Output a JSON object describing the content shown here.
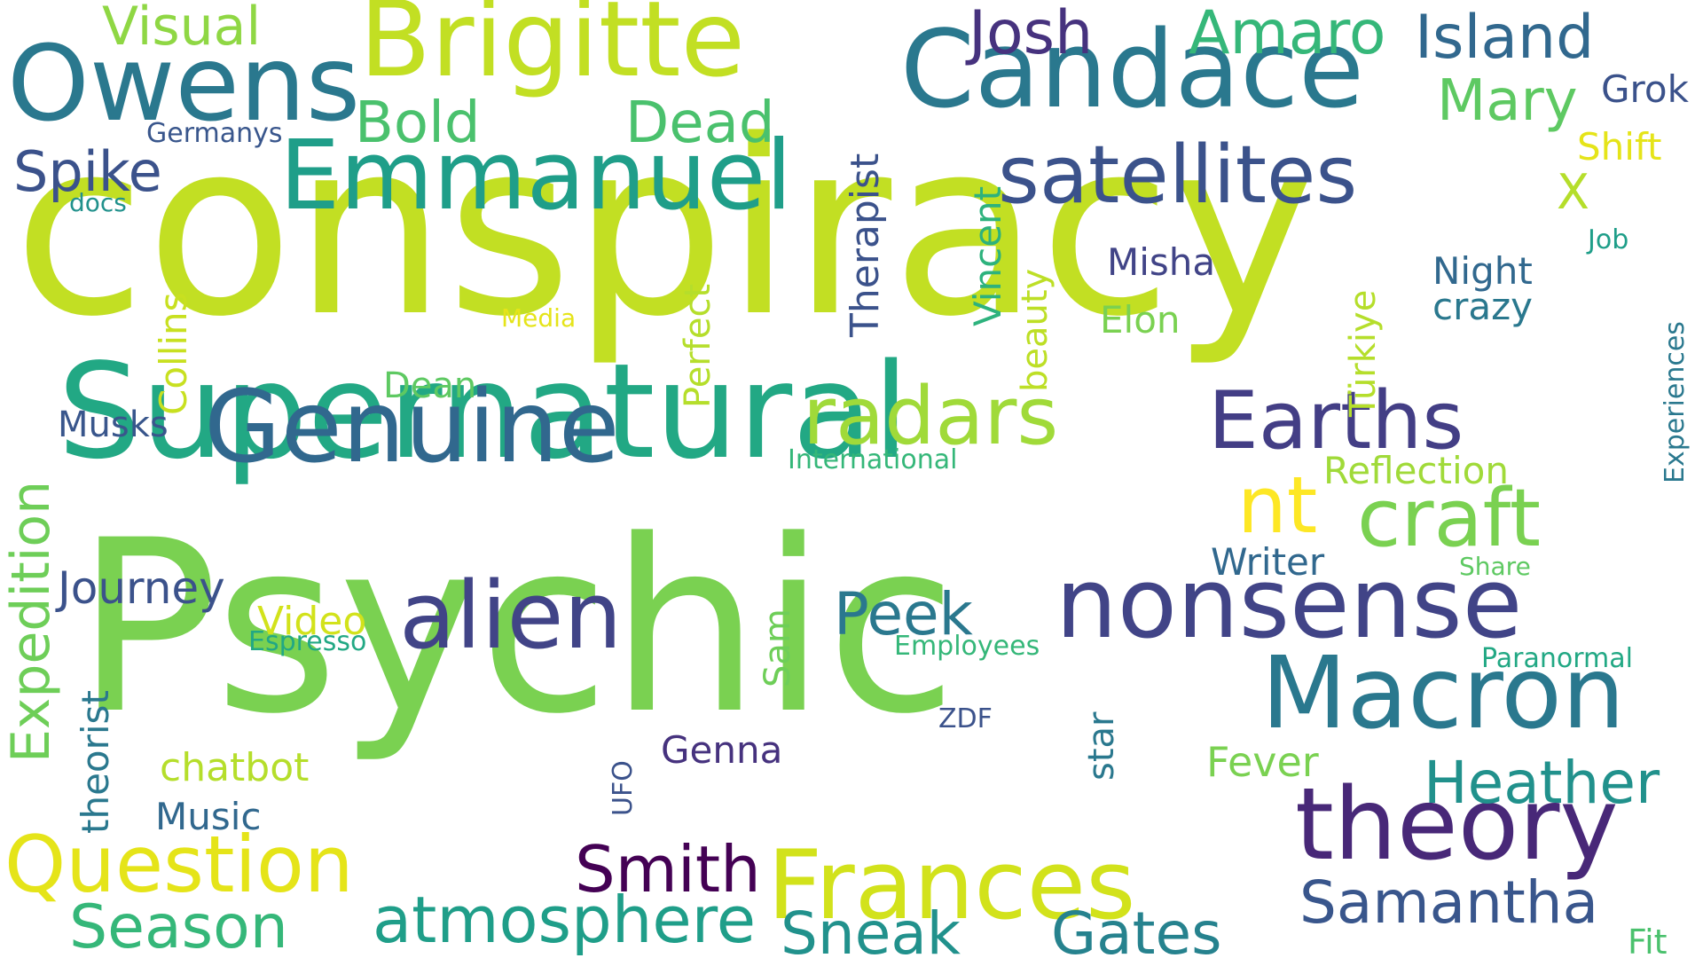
{
  "words": [
    {
      "text": "conspiracy",
      "color": "#c2df23"
    },
    {
      "text": "Psychic",
      "color": "#7ad151"
    },
    {
      "text": "Supernatural",
      "color": "#22a884"
    },
    {
      "text": "Candace",
      "color": "#2a788e"
    },
    {
      "text": "Brigitte",
      "color": "#c2df23"
    },
    {
      "text": "Owens",
      "color": "#2a788e"
    },
    {
      "text": "Emmanuel",
      "color": "#1f9e89"
    },
    {
      "text": "satellites",
      "color": "#3b528b"
    },
    {
      "text": "Macron",
      "color": "#2a788e"
    },
    {
      "text": "theory",
      "color": "#482878"
    },
    {
      "text": "nonsense",
      "color": "#414487"
    },
    {
      "text": "Frances",
      "color": "#d2e21b"
    },
    {
      "text": "Genuine",
      "color": "#31688e"
    },
    {
      "text": "alien",
      "color": "#414487"
    },
    {
      "text": "radars",
      "color": "#a0da39"
    },
    {
      "text": "Earths",
      "color": "#433e85"
    },
    {
      "text": "craft",
      "color": "#7ad151"
    },
    {
      "text": "nt",
      "color": "#fde725"
    },
    {
      "text": "Question",
      "color": "#e5e419"
    },
    {
      "text": "Smith",
      "color": "#440154"
    },
    {
      "text": "atmosphere",
      "color": "#1f9e89"
    },
    {
      "text": "Season",
      "color": "#35b779"
    },
    {
      "text": "Sneak",
      "color": "#21918c"
    },
    {
      "text": "Gates",
      "color": "#26828e"
    },
    {
      "text": "Samantha",
      "color": "#39568c"
    },
    {
      "text": "Heather",
      "color": "#21918c"
    },
    {
      "text": "Peek",
      "color": "#2a788e"
    },
    {
      "text": "Josh",
      "color": "#46327e"
    },
    {
      "text": "Amaro",
      "color": "#35b779"
    },
    {
      "text": "Island",
      "color": "#31688e"
    },
    {
      "text": "Mary",
      "color": "#5ec962"
    },
    {
      "text": "Visual",
      "color": "#8fd744"
    },
    {
      "text": "Bold",
      "color": "#4ac16d"
    },
    {
      "text": "Dead",
      "color": "#4ac16d"
    },
    {
      "text": "Spike",
      "color": "#3b528b"
    },
    {
      "text": "Expedition",
      "color": "#6ece58"
    },
    {
      "text": "Journey",
      "color": "#3b528b"
    },
    {
      "text": "Video",
      "color": "#d2e21b"
    },
    {
      "text": "chatbot",
      "color": "#b5de2b"
    },
    {
      "text": "Music",
      "color": "#31688e"
    },
    {
      "text": "Genna",
      "color": "#46327e"
    },
    {
      "text": "Fever",
      "color": "#7ad151"
    },
    {
      "text": "Writer",
      "color": "#31688e"
    },
    {
      "text": "Reflection",
      "color": "#a0da39"
    },
    {
      "text": "Misha",
      "color": "#414487"
    },
    {
      "text": "Elon",
      "color": "#7ad151"
    },
    {
      "text": "Night",
      "color": "#31688e"
    },
    {
      "text": "crazy",
      "color": "#2a788e"
    },
    {
      "text": "Grok",
      "color": "#3b528b"
    },
    {
      "text": "Shift",
      "color": "#e5e419"
    },
    {
      "text": "X",
      "color": "#b5de2b"
    },
    {
      "text": "Job",
      "color": "#1f9e89"
    },
    {
      "text": "Dean",
      "color": "#5ec962"
    },
    {
      "text": "Musks",
      "color": "#39568c"
    },
    {
      "text": "International",
      "color": "#35b779"
    },
    {
      "text": "Espresso",
      "color": "#22a884"
    },
    {
      "text": "Employees",
      "color": "#35b779"
    },
    {
      "text": "Paranormal",
      "color": "#22a884"
    },
    {
      "text": "Share",
      "color": "#5ec962"
    },
    {
      "text": "Media",
      "color": "#e5e419"
    },
    {
      "text": "docs",
      "color": "#21918c"
    },
    {
      "text": "Germanys",
      "color": "#39568c"
    },
    {
      "text": "ZDF",
      "color": "#3b528b"
    },
    {
      "text": "Fit",
      "color": "#4ac16d"
    },
    {
      "text": "Therapist",
      "color": "#3b528b"
    },
    {
      "text": "Vincent",
      "color": "#2db27d"
    },
    {
      "text": "beauty",
      "color": "#bddf26"
    },
    {
      "text": "Türkiye",
      "color": "#b5de2b"
    },
    {
      "text": "Perfect",
      "color": "#b5de2b"
    },
    {
      "text": "Collins",
      "color": "#c8e020"
    },
    {
      "text": "theorist",
      "color": "#2a788e"
    },
    {
      "text": "Sam",
      "color": "#6ece58"
    },
    {
      "text": "UFO",
      "color": "#3b528b"
    },
    {
      "text": "star",
      "color": "#2a788e"
    },
    {
      "text": "Experiences",
      "color": "#2a788e"
    }
  ]
}
